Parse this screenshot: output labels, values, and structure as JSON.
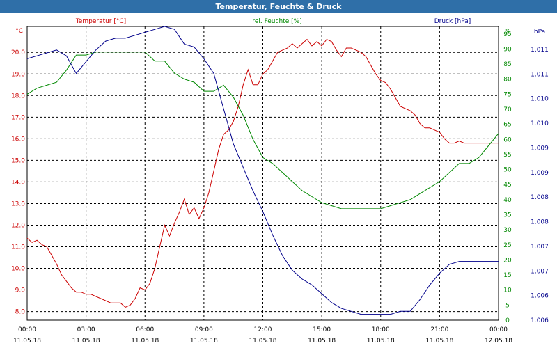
{
  "window": {
    "title": "Temperatur, Feuchte & Druck"
  },
  "colors": {
    "temperature": "#cc0000",
    "humidity": "#008800",
    "pressure": "#00008b",
    "titlebar": "#2f6fa8",
    "grid": "#000000"
  },
  "chart_data": {
    "type": "line",
    "title": "Temperatur, Feuchte & Druck",
    "grid": true,
    "x_ticks": [
      {
        "time": "00:00",
        "date": "11.05.18"
      },
      {
        "time": "03:00",
        "date": "11.05.18"
      },
      {
        "time": "06:00",
        "date": "11.05.18"
      },
      {
        "time": "09:00",
        "date": "11.05.18"
      },
      {
        "time": "12:00",
        "date": "11.05.18"
      },
      {
        "time": "15:00",
        "date": "11.05.18"
      },
      {
        "time": "18:00",
        "date": "11.05.18"
      },
      {
        "time": "21:00",
        "date": "11.05.18"
      },
      {
        "time": "00:00",
        "date": "12.05.18"
      }
    ],
    "axes": {
      "temperature": {
        "unit": "°C",
        "label": "Temperatur [°C]",
        "range": [
          7.6,
          21.2
        ],
        "ticks": [
          "8.0",
          "9.0",
          "10.0",
          "11.0",
          "12.0",
          "13.0",
          "14.0",
          "15.0",
          "16.0",
          "17.0",
          "18.0",
          "19.0",
          "20.0"
        ]
      },
      "humidity": {
        "unit": "%",
        "label": "rel. Feuchte [%]",
        "range": [
          0,
          97.5
        ],
        "ticks": [
          "0",
          "5",
          "10",
          "15",
          "20",
          "25",
          "30",
          "35",
          "40",
          "45",
          "50",
          "55",
          "60",
          "65",
          "70",
          "75",
          "80",
          "85",
          "90",
          "95"
        ]
      },
      "pressure": {
        "unit": "hPa",
        "label": "Druck [hPa]",
        "range": [
          0,
          10
        ],
        "ticks": [
          "1.006",
          "1.006",
          "1.007",
          "1.007",
          "1.008",
          "1.008",
          "1.009",
          "1.009",
          "1.010",
          "1.010",
          "1.011",
          "1.011"
        ]
      }
    },
    "series": [
      {
        "name": "Temperatur [°C]",
        "axis": "temperature",
        "x": [
          0,
          0.25,
          0.5,
          0.75,
          1,
          1.25,
          1.5,
          1.75,
          2,
          2.25,
          2.5,
          2.75,
          3,
          3.25,
          3.5,
          3.75,
          4,
          4.25,
          4.5,
          4.75,
          5,
          5.25,
          5.5,
          5.75,
          6,
          6.25,
          6.5,
          6.75,
          7,
          7.25,
          7.5,
          7.75,
          8,
          8.25,
          8.5,
          8.75,
          9,
          9.25,
          9.5,
          9.75,
          10,
          10.25,
          10.5,
          10.75,
          11,
          11.25,
          11.5,
          11.75,
          12,
          12.25,
          12.5,
          12.75,
          13,
          13.25,
          13.5,
          13.75,
          14,
          14.25,
          14.5,
          14.75,
          15,
          15.25,
          15.5,
          15.75,
          16,
          16.25,
          16.5,
          16.75,
          17,
          17.25,
          17.5,
          17.75,
          18,
          18.25,
          18.5,
          18.75,
          19,
          19.25,
          19.5,
          19.75,
          20,
          20.25,
          20.5,
          20.75,
          21,
          21.25,
          21.5,
          21.75,
          22,
          22.25,
          22.5,
          22.75,
          23,
          23.25,
          23.5,
          23.75,
          24
        ],
        "y": [
          11.4,
          11.2,
          11.3,
          11.1,
          11.0,
          10.6,
          10.2,
          9.7,
          9.4,
          9.1,
          8.9,
          8.9,
          8.8,
          8.8,
          8.7,
          8.6,
          8.5,
          8.4,
          8.4,
          8.4,
          8.2,
          8.3,
          8.6,
          9.1,
          9.0,
          9.3,
          10.0,
          11.0,
          12.0,
          11.5,
          12.1,
          12.6,
          13.2,
          12.5,
          12.8,
          12.3,
          12.8,
          13.5,
          14.5,
          15.5,
          16.2,
          16.4,
          16.8,
          17.5,
          18.5,
          19.2,
          18.5,
          18.5,
          19.0,
          19.2,
          19.6,
          20.0,
          20.1,
          20.2,
          20.4,
          20.2,
          20.4,
          20.6,
          20.3,
          20.5,
          20.3,
          20.6,
          20.5,
          20.1,
          19.8,
          20.2,
          20.2,
          20.1,
          20.0,
          19.8,
          19.4,
          19.0,
          18.7,
          18.6,
          18.3,
          17.9,
          17.5,
          17.4,
          17.3,
          17.1,
          16.7,
          16.5,
          16.5,
          16.4,
          16.3,
          16.0,
          15.8,
          15.8,
          15.9,
          15.8,
          15.8,
          15.8,
          15.8,
          15.8,
          15.8,
          15.8,
          15.8
        ]
      },
      {
        "name": "rel. Feuchte [%]",
        "axis": "humidity",
        "x": [
          0,
          0.5,
          1,
          1.5,
          2,
          2.5,
          3,
          3.5,
          4,
          4.5,
          5,
          5.5,
          6,
          6.5,
          7,
          7.5,
          8,
          8.5,
          9,
          9.5,
          10,
          10.5,
          11,
          11.5,
          12,
          12.5,
          13,
          13.5,
          14,
          14.5,
          15,
          15.5,
          16,
          16.5,
          17,
          17.5,
          18,
          18.5,
          19,
          19.5,
          20,
          20.5,
          21,
          21.5,
          22,
          22.5,
          23,
          23.5,
          24
        ],
        "y": [
          75,
          77,
          78,
          79,
          83,
          88,
          88,
          89,
          89,
          89,
          89,
          89,
          89,
          86,
          86,
          82,
          80,
          79,
          76,
          76,
          78,
          74,
          68,
          60,
          54,
          52,
          49,
          46,
          43,
          41,
          39,
          38,
          37,
          37,
          37,
          37,
          37,
          38,
          39,
          40,
          42,
          44,
          46,
          49,
          52,
          52,
          54,
          58,
          62
        ]
      },
      {
        "name": "Druck [hPa]",
        "axis": "pressure",
        "x": [
          0,
          0.5,
          1,
          1.5,
          2,
          2.5,
          3,
          3.5,
          4,
          4.5,
          5,
          5.5,
          6,
          6.5,
          7,
          7.5,
          8,
          8.5,
          9,
          9.5,
          10,
          10.5,
          11,
          11.5,
          12,
          12.5,
          13,
          13.5,
          14,
          14.5,
          15,
          15.5,
          16,
          16.5,
          17,
          17.5,
          18,
          18.5,
          19,
          19.5,
          20,
          20.5,
          21,
          21.5,
          22,
          22.5,
          23,
          23.5,
          24
        ],
        "y": [
          8.9,
          9.0,
          9.1,
          9.2,
          9.0,
          8.4,
          8.8,
          9.2,
          9.5,
          9.6,
          9.6,
          9.7,
          9.8,
          9.9,
          10.0,
          9.9,
          9.4,
          9.3,
          8.9,
          8.4,
          7.2,
          6.0,
          5.2,
          4.4,
          3.7,
          2.9,
          2.2,
          1.7,
          1.4,
          1.2,
          0.9,
          0.6,
          0.4,
          0.3,
          0.2,
          0.2,
          0.2,
          0.2,
          0.3,
          0.3,
          0.7,
          1.2,
          1.6,
          1.9,
          2.0,
          2.0,
          2.0,
          2.0,
          2.0
        ]
      }
    ]
  }
}
